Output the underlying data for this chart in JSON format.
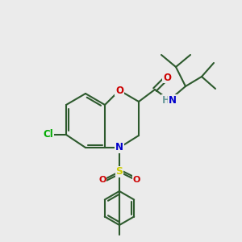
{
  "background_color": "#ebebeb",
  "bond_color": "#2d5a2d",
  "atom_colors": {
    "O": "#cc0000",
    "N": "#0000cc",
    "S": "#cccc00",
    "Cl": "#00aa00",
    "H": "#6a9a9a",
    "C": "#2d5a2d"
  },
  "figsize": [
    3.0,
    3.0
  ],
  "dpi": 100
}
